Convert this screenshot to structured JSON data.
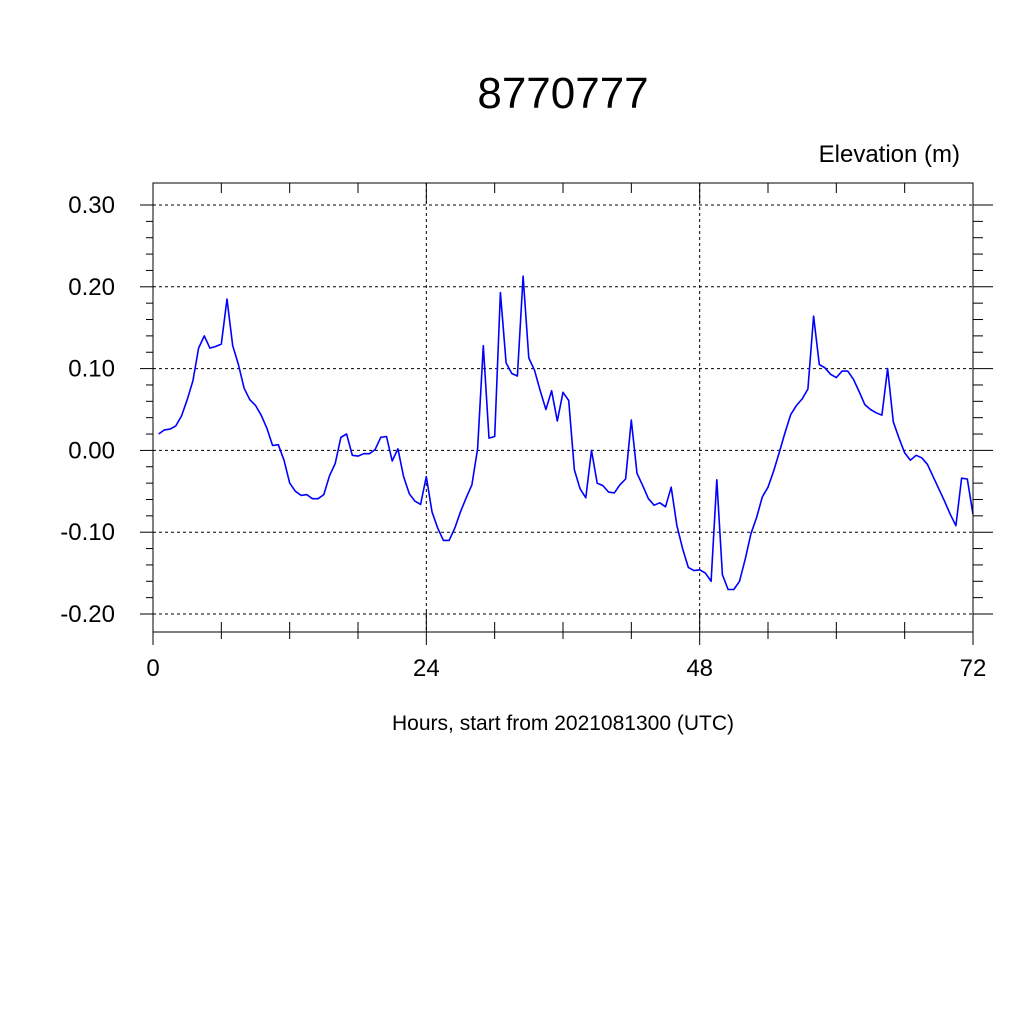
{
  "chart_data": {
    "type": "line",
    "title": "8770777",
    "ylabel": "Elevation (m)",
    "xlabel": "Hours, start from 2021081300 (UTC)",
    "xlim": [
      0,
      72
    ],
    "ylim": [
      -0.2,
      0.3
    ],
    "x_ticks": [
      0,
      24,
      48,
      72
    ],
    "x_tick_labels": [
      "0",
      "24",
      "48",
      "72"
    ],
    "y_ticks": [
      -0.2,
      -0.1,
      0.0,
      0.1,
      0.2,
      0.3
    ],
    "y_tick_labels": [
      "-0.20",
      "-0.10",
      "0.00",
      "0.10",
      "0.20",
      "0.30"
    ],
    "grid": true,
    "series": [
      {
        "color": "#0000ff",
        "x": [
          0.5,
          1.0,
          1.5,
          2.0,
          2.5,
          3.0,
          3.5,
          4.0,
          4.5,
          5.0,
          5.5,
          6.0,
          6.5,
          7.0,
          7.5,
          8.0,
          8.5,
          9.0,
          9.5,
          10.0,
          10.5,
          11.0,
          11.5,
          12.0,
          12.5,
          13.0,
          13.5,
          14.0,
          14.5,
          15.0,
          15.5,
          16.0,
          16.5,
          17.0,
          17.5,
          18.0,
          18.5,
          19.0,
          19.5,
          20.0,
          20.5,
          21.0,
          21.5,
          22.0,
          22.5,
          23.0,
          23.5,
          24.0,
          24.5,
          25.0,
          25.5,
          26.0,
          26.5,
          27.0,
          27.5,
          28.0,
          28.5,
          29.0,
          29.5,
          30.0,
          30.5,
          31.0,
          31.5,
          32.0,
          32.5,
          33.0,
          33.5,
          34.0,
          34.5,
          35.0,
          35.5,
          36.0,
          36.5,
          37.0,
          37.5,
          38.0,
          38.5,
          39.0,
          39.5,
          40.0,
          40.5,
          41.0,
          41.5,
          42.0,
          42.5,
          43.0,
          43.5,
          44.0,
          44.5,
          45.0,
          45.5,
          46.0,
          46.5,
          47.0,
          47.5,
          48.0,
          48.5,
          49.0,
          49.5,
          50.0,
          50.5,
          51.0,
          51.5,
          52.0,
          52.5,
          53.0,
          53.5,
          54.0,
          54.5,
          55.0,
          55.5,
          56.0,
          56.5,
          57.0,
          57.5,
          58.0,
          58.5,
          59.0,
          59.5,
          60.0,
          60.5,
          61.0,
          61.5,
          62.0,
          62.5,
          63.0,
          63.5,
          64.0,
          64.5,
          65.0,
          65.5,
          66.0,
          66.5,
          67.0,
          67.5,
          68.0,
          68.5,
          69.0,
          69.5,
          70.0,
          70.5,
          71.0,
          71.5,
          72.0
        ],
        "y": [
          0.02,
          0.025,
          0.026,
          0.03,
          0.042,
          0.062,
          0.085,
          0.125,
          0.14,
          0.125,
          0.127,
          0.13,
          0.185,
          0.128,
          0.105,
          0.076,
          0.062,
          0.055,
          0.043,
          0.027,
          0.006,
          0.007,
          -0.012,
          -0.04,
          -0.05,
          -0.055,
          -0.054,
          -0.059,
          -0.059,
          -0.054,
          -0.031,
          -0.016,
          0.016,
          0.02,
          -0.006,
          -0.007,
          -0.004,
          -0.004,
          0.001,
          0.016,
          0.017,
          -0.013,
          0.002,
          -0.032,
          -0.053,
          -0.062,
          -0.066,
          -0.032,
          -0.075,
          -0.095,
          -0.11,
          -0.11,
          -0.095,
          -0.075,
          -0.058,
          -0.042,
          0.002,
          0.128,
          0.015,
          0.017,
          0.193,
          0.107,
          0.094,
          0.091,
          0.213,
          0.113,
          0.098,
          0.073,
          0.05,
          0.073,
          0.036,
          0.071,
          0.061,
          -0.024,
          -0.047,
          -0.058,
          0.0,
          -0.04,
          -0.043,
          -0.051,
          -0.052,
          -0.042,
          -0.035,
          0.037,
          -0.028,
          -0.043,
          -0.059,
          -0.067,
          -0.064,
          -0.069,
          -0.045,
          -0.092,
          -0.12,
          -0.143,
          -0.147,
          -0.146,
          -0.15,
          -0.16,
          -0.036,
          -0.152,
          -0.17,
          -0.17,
          -0.16,
          -0.133,
          -0.102,
          -0.082,
          -0.057,
          -0.045,
          -0.025,
          -0.002,
          0.022,
          0.044,
          0.055,
          0.063,
          0.075,
          0.164,
          0.105,
          0.101,
          0.093,
          0.089,
          0.097,
          0.097,
          0.087,
          0.072,
          0.056,
          0.05,
          0.046,
          0.043,
          0.1,
          0.035,
          0.015,
          -0.003,
          -0.012,
          -0.006,
          -0.009,
          -0.017,
          -0.032,
          -0.047,
          -0.062,
          -0.078,
          -0.092,
          -0.034,
          -0.035,
          -0.078
        ]
      }
    ]
  }
}
